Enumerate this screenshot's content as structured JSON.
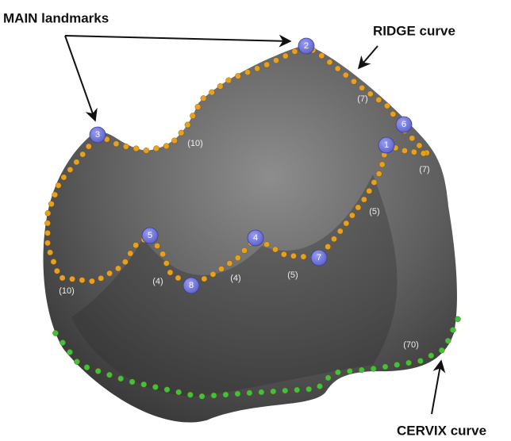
{
  "labels": {
    "main": "MAIN landmarks",
    "ridge": "RIDGE curve",
    "cervix": "CERVIX curve"
  },
  "landmarks": [
    "1",
    "2",
    "3",
    "4",
    "5",
    "6",
    "7",
    "8"
  ],
  "counts": [
    "(7)",
    "(10)",
    "(7)",
    "(5)",
    "(10)",
    "(4)",
    "(4)",
    "(5)",
    "(70)"
  ]
}
